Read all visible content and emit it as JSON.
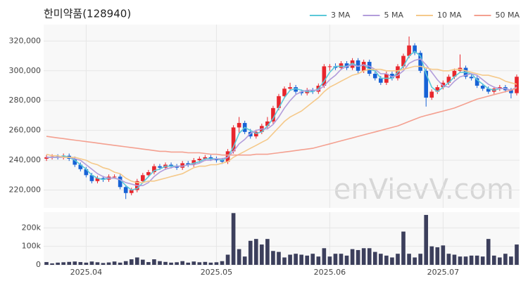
{
  "chart_data": {
    "type": "candlestick",
    "title": "한미약품(128940)",
    "watermark": "enVievV.com",
    "categories": [
      null,
      null,
      null,
      null,
      null,
      null,
      null,
      "2025.04",
      null,
      null,
      null,
      null,
      null,
      null,
      null,
      null,
      null,
      null,
      null,
      null,
      null,
      null,
      null,
      null,
      null,
      null,
      null,
      null,
      null,
      null,
      "2025.05",
      null,
      null,
      null,
      null,
      null,
      null,
      null,
      null,
      null,
      null,
      null,
      null,
      null,
      null,
      null,
      null,
      null,
      null,
      null,
      "2025.06",
      null,
      null,
      null,
      null,
      null,
      null,
      null,
      null,
      null,
      null,
      null,
      null,
      null,
      null,
      null,
      null,
      null,
      null,
      null,
      "2025.07",
      null,
      null,
      null,
      null,
      null,
      null,
      null,
      null,
      null,
      null,
      null,
      null,
      null
    ],
    "open": [
      241000,
      242000,
      242500,
      242000,
      243000,
      241000,
      237000,
      234000,
      230000,
      226000,
      228000,
      227000,
      229000,
      229000,
      222000,
      218000,
      220000,
      226000,
      230000,
      232000,
      236000,
      235000,
      237000,
      236000,
      235000,
      238000,
      237000,
      240000,
      241000,
      242000,
      241000,
      240000,
      239000,
      246000,
      262000,
      265000,
      259000,
      256000,
      259000,
      263000,
      266000,
      275000,
      283000,
      288000,
      289000,
      286000,
      285000,
      287000,
      286000,
      290000,
      303000,
      303000,
      302000,
      305000,
      302000,
      307000,
      300000,
      306000,
      298000,
      295000,
      292000,
      298000,
      295000,
      303000,
      310000,
      317000,
      312000,
      300000,
      282000,
      286000,
      289000,
      292000,
      296000,
      300000,
      302000,
      296000,
      295000,
      290000,
      288000,
      286000,
      288000,
      289000,
      287000,
      285000
    ],
    "high": [
      243500,
      244000,
      244000,
      244500,
      244500,
      242500,
      238500,
      235500,
      231500,
      229500,
      229500,
      230500,
      230500,
      230500,
      223500,
      221500,
      227500,
      231500,
      233500,
      237500,
      237500,
      238500,
      238500,
      237500,
      239500,
      239500,
      241500,
      242500,
      243500,
      243500,
      242500,
      241500,
      247500,
      263500,
      269000,
      266500,
      261000,
      260500,
      264500,
      269000,
      276500,
      284500,
      289500,
      292000,
      290500,
      287500,
      288500,
      288500,
      291500,
      304500,
      304500,
      305000,
      306500,
      306500,
      308500,
      308500,
      307500,
      307500,
      299500,
      296500,
      299500,
      299500,
      304500,
      311500,
      323000,
      318500,
      313500,
      301500,
      287500,
      290500,
      293500,
      297500,
      301500,
      311000,
      303500,
      297500,
      296500,
      291500,
      289500,
      289500,
      290500,
      290500,
      288500,
      297500
    ],
    "low": [
      239500,
      240500,
      240500,
      240500,
      239500,
      235500,
      232500,
      228500,
      224500,
      224500,
      225500,
      225500,
      227500,
      220500,
      214000,
      216500,
      218500,
      224500,
      228500,
      230500,
      233500,
      233500,
      234500,
      233500,
      233500,
      235500,
      235500,
      238500,
      239500,
      239500,
      238500,
      237500,
      237500,
      244500,
      258000,
      257500,
      254500,
      254500,
      257500,
      261500,
      264500,
      273500,
      281500,
      286500,
      284500,
      283500,
      283500,
      284500,
      284500,
      288500,
      300000,
      300500,
      300500,
      300500,
      300500,
      298500,
      298500,
      296500,
      293500,
      290500,
      290500,
      293500,
      293500,
      301500,
      308500,
      310500,
      298500,
      276000,
      280500,
      284500,
      287500,
      290500,
      294500,
      298500,
      294500,
      293500,
      288500,
      286500,
      284500,
      284500,
      286500,
      285500,
      281500,
      283500
    ],
    "close": [
      242000,
      242500,
      242000,
      243000,
      241000,
      237000,
      234000,
      230000,
      226000,
      228000,
      227000,
      229000,
      229000,
      222000,
      218000,
      220000,
      226000,
      230000,
      232000,
      236000,
      235000,
      237000,
      236000,
      235000,
      238000,
      237000,
      240000,
      241000,
      242000,
      241000,
      240000,
      239000,
      246000,
      262000,
      265000,
      259000,
      256000,
      259000,
      263000,
      266000,
      275000,
      283000,
      288000,
      289000,
      286000,
      285000,
      287000,
      286000,
      290000,
      303000,
      303000,
      302000,
      305000,
      302000,
      307000,
      300000,
      306000,
      298000,
      295000,
      292000,
      298000,
      295000,
      303000,
      310000,
      317000,
      312000,
      300000,
      282000,
      286000,
      289000,
      292000,
      296000,
      300000,
      302000,
      296000,
      295000,
      290000,
      288000,
      286000,
      288000,
      289000,
      287000,
      285000,
      296000
    ],
    "up_color": "#e8262d",
    "down_color": "#1762d6",
    "series": [
      {
        "name": "3 MA",
        "color": "#5bc8d8",
        "values": [
          242000,
          242000,
          242000,
          243000,
          242000,
          240000,
          237000,
          234000,
          230000,
          228000,
          227000,
          228000,
          228000,
          227000,
          223000,
          220000,
          221000,
          225000,
          229000,
          233000,
          234000,
          236000,
          236000,
          236000,
          236000,
          237000,
          238000,
          239000,
          241000,
          241000,
          241000,
          240000,
          242000,
          249000,
          258000,
          262000,
          260000,
          258000,
          259000,
          263000,
          268000,
          275000,
          282000,
          287000,
          288000,
          287000,
          286000,
          286000,
          288000,
          293000,
          299000,
          303000,
          303000,
          303000,
          305000,
          303000,
          304000,
          301000,
          300000,
          295000,
          295000,
          295000,
          299000,
          303000,
          310000,
          313000,
          310000,
          298000,
          289000,
          286000,
          289000,
          292000,
          296000,
          299000,
          299000,
          298000,
          294000,
          291000,
          288000,
          287000,
          288000,
          288000,
          287000,
          289000
        ]
      },
      {
        "name": "5 MA",
        "color": "#b39ddb",
        "values": [
          242000,
          242000,
          242000,
          242000,
          242000,
          241000,
          240000,
          237000,
          234000,
          231000,
          229000,
          228000,
          228000,
          227000,
          225000,
          224000,
          223000,
          223000,
          225000,
          229000,
          232000,
          234000,
          235000,
          236000,
          236000,
          237000,
          237000,
          238000,
          240000,
          240000,
          241000,
          241000,
          242000,
          246000,
          251000,
          254000,
          258000,
          260000,
          261000,
          261000,
          264000,
          269000,
          275000,
          280000,
          284000,
          286000,
          287000,
          287000,
          287000,
          290000,
          294000,
          297000,
          301000,
          303000,
          304000,
          303000,
          304000,
          303000,
          301000,
          298000,
          298000,
          296000,
          297000,
          300000,
          305000,
          307000,
          308000,
          304000,
          299000,
          294000,
          290000,
          289000,
          293000,
          296000,
          297000,
          298000,
          297000,
          294000,
          291000,
          289000,
          288000,
          288000,
          287000,
          289000
        ]
      },
      {
        "name": "10 MA",
        "color": "#f5c98a",
        "values": [
          244000,
          243000,
          243000,
          242000,
          242000,
          242000,
          241000,
          240000,
          238000,
          237000,
          235000,
          234000,
          232000,
          231000,
          228000,
          226000,
          225000,
          225000,
          226000,
          226000,
          227000,
          228000,
          229000,
          230000,
          231000,
          233000,
          235000,
          236000,
          236000,
          237000,
          237000,
          238000,
          239000,
          242000,
          244000,
          246000,
          248000,
          250000,
          252000,
          254000,
          258000,
          262000,
          266000,
          269000,
          271000,
          273000,
          276000,
          279000,
          282000,
          286000,
          289000,
          291000,
          293000,
          295000,
          297000,
          298000,
          300000,
          301000,
          301000,
          301000,
          300000,
          300000,
          300000,
          301000,
          302000,
          303000,
          303000,
          302000,
          301000,
          301000,
          300000,
          300000,
          301000,
          301000,
          300000,
          299000,
          298000,
          297000,
          297000,
          296000,
          295000,
          293000,
          292000,
          291000
        ]
      },
      {
        "name": "50 MA",
        "color": "#f4a090",
        "values": [
          256000,
          255500,
          255000,
          254500,
          254000,
          253500,
          253000,
          252500,
          252000,
          251500,
          251000,
          250500,
          250000,
          249500,
          249000,
          248500,
          248000,
          247500,
          247000,
          246500,
          246000,
          246000,
          245500,
          245500,
          245500,
          245000,
          245000,
          245000,
          244500,
          244000,
          244000,
          243500,
          243500,
          243500,
          243500,
          243500,
          243500,
          244000,
          244000,
          244000,
          244500,
          245000,
          245500,
          246000,
          246500,
          247000,
          247500,
          248000,
          249000,
          250000,
          251000,
          252000,
          253000,
          254000,
          255000,
          256000,
          257000,
          258000,
          259000,
          260000,
          261000,
          262000,
          263000,
          264500,
          266000,
          267500,
          269000,
          270000,
          271000,
          272000,
          273000,
          274000,
          275000,
          276500,
          278000,
          279500,
          281000,
          282000,
          283000,
          284000,
          285000,
          286000,
          287000,
          288500
        ]
      }
    ],
    "ylim": [
      208000,
      331000
    ],
    "yticks": [
      {
        "value": 220000,
        "label": "220,000"
      },
      {
        "value": 240000,
        "label": "240,000"
      },
      {
        "value": 260000,
        "label": "260,000"
      },
      {
        "value": 280000,
        "label": "280,000"
      },
      {
        "value": 300000,
        "label": "300,000"
      },
      {
        "value": 320000,
        "label": "320,000"
      }
    ],
    "grid": true,
    "legend": "top-right",
    "volume": {
      "color": "#3c3f5c",
      "values": [
        15000,
        8000,
        12000,
        14000,
        16000,
        18000,
        15000,
        12000,
        18000,
        14000,
        10000,
        13000,
        18000,
        12000,
        20000,
        30000,
        40000,
        28000,
        15000,
        30000,
        20000,
        16000,
        12000,
        14000,
        20000,
        12000,
        18000,
        14000,
        16000,
        12000,
        14000,
        20000,
        55000,
        280000,
        85000,
        45000,
        130000,
        140000,
        110000,
        140000,
        75000,
        70000,
        40000,
        55000,
        60000,
        55000,
        50000,
        60000,
        45000,
        90000,
        45000,
        60000,
        60000,
        50000,
        85000,
        80000,
        90000,
        90000,
        70000,
        60000,
        50000,
        40000,
        60000,
        180000,
        60000,
        40000,
        60000,
        270000,
        100000,
        95000,
        105000,
        60000,
        55000,
        45000,
        45000,
        50000,
        50000,
        45000,
        140000,
        50000,
        40000,
        60000,
        45000,
        110000
      ],
      "ylim": [
        0,
        285000
      ],
      "yticks": [
        0,
        {
          "value": 100000,
          "label": "100k"
        },
        {
          "value": 200000,
          "label": "200k"
        }
      ]
    }
  }
}
